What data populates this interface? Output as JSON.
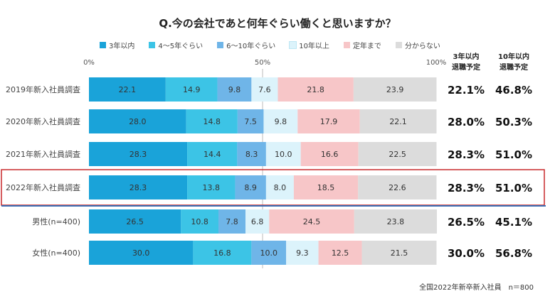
{
  "chart_data": {
    "type": "bar",
    "orientation": "horizontal",
    "stacked": true,
    "title": "Q.今の会社であと何年ぐらい働くと思いますか？",
    "xlim": [
      0,
      100
    ],
    "ticks": [
      {
        "value": 0,
        "label": "0%"
      },
      {
        "value": 50,
        "label": "50%"
      },
      {
        "value": 100,
        "label": "100%"
      }
    ],
    "legend_position": "top",
    "series": [
      {
        "name": "3年以内",
        "color": "#1aa3d9"
      },
      {
        "name": "4～5年ぐらい",
        "color": "#3cc4e6"
      },
      {
        "name": "6～10年ぐらい",
        "color": "#6fb5e8"
      },
      {
        "name": "10年以上",
        "color": "#dcf3fb"
      },
      {
        "name": "定年まで",
        "color": "#f7c6c8"
      },
      {
        "name": "分からない",
        "color": "#dcdcdc"
      }
    ],
    "categories": [
      "2019年新入社員調査",
      "2020年新入社員調査",
      "2021年新入社員調査",
      "2022年新入社員調査",
      "男性(n=400)",
      "女性(n=400)"
    ],
    "values": [
      [
        "22.1",
        "14.9",
        "9.8",
        "7.6",
        "21.8",
        "23.9"
      ],
      [
        "28.0",
        "14.8",
        "7.5",
        "9.8",
        "17.9",
        "22.1"
      ],
      [
        "28.3",
        "14.4",
        "8.3",
        "10.0",
        "16.6",
        "22.5"
      ],
      [
        "28.3",
        "13.8",
        "8.9",
        "8.0",
        "18.5",
        "22.6"
      ],
      [
        "26.5",
        "10.8",
        "7.8",
        "6.8",
        "24.5",
        "23.8"
      ],
      [
        "30.0",
        "16.8",
        "10.0",
        "9.3",
        "12.5",
        "21.5"
      ]
    ],
    "summary_columns": [
      {
        "header_line1": "3年以内",
        "header_line2": "退職予定",
        "values": [
          "22.1%",
          "28.0%",
          "28.3%",
          "28.3%",
          "26.5%",
          "30.0%"
        ]
      },
      {
        "header_line1": "10年以内",
        "header_line2": "退職予定",
        "values": [
          "46.8%",
          "50.3%",
          "51.0%",
          "51.0%",
          "45.1%",
          "56.8%"
        ]
      }
    ],
    "highlighted_category": "2022年新入社員調査",
    "highlight_color": "#c8282b",
    "divider_color": "#3d6fb5",
    "footnote": "全国2022年新卒新入社員　n＝800"
  }
}
